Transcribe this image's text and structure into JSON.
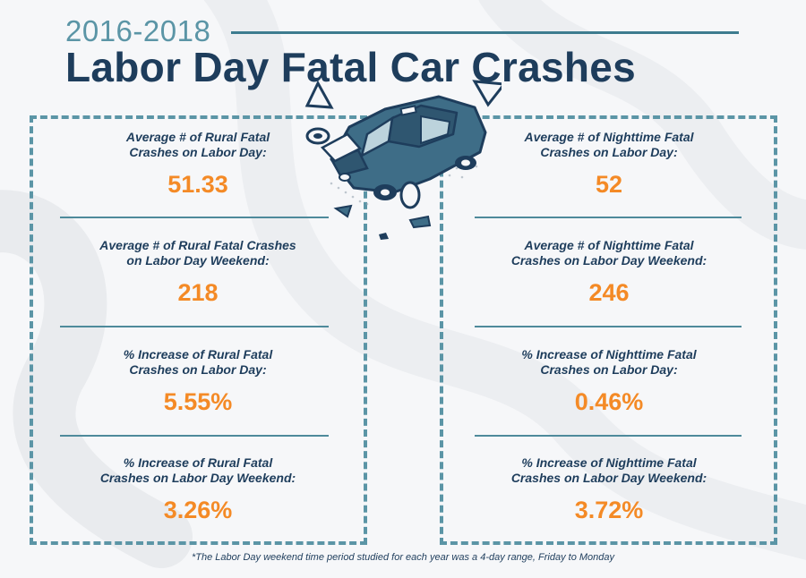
{
  "header": {
    "years": "2016-2018",
    "title": "Labor Day Fatal Car Crashes"
  },
  "colors": {
    "navy": "#1e3d5c",
    "teal": "#5b95a6",
    "orange": "#f48a26"
  },
  "left_panel": {
    "stats": [
      {
        "label": "Average # of Rural Fatal\nCrashes on Labor Day:",
        "value": "51.33"
      },
      {
        "label": "Average # of Rural Fatal Crashes\non Labor Day Weekend:",
        "value": "218"
      },
      {
        "label": "% Increase of Rural Fatal\nCrashes on Labor Day:",
        "value": "5.55%"
      },
      {
        "label": "% Increase of Rural Fatal\nCrashes on Labor Day Weekend:",
        "value": "3.26%"
      }
    ]
  },
  "right_panel": {
    "stats": [
      {
        "label": "Average # of Nighttime Fatal\nCrashes on Labor Day:",
        "value": "52"
      },
      {
        "label": "Average # of Nighttime Fatal\nCrashes on Labor Day Weekend:",
        "value": "246"
      },
      {
        "label": "% Increase of Nighttime Fatal\nCrashes on Labor Day:",
        "value": "0.46%"
      },
      {
        "label": "% Increase of Nighttime Fatal\nCrashes on Labor Day Weekend:",
        "value": "3.72%"
      }
    ]
  },
  "footnote": "*The Labor Day weekend time period studied for each year was a 4-day range, Friday to Monday",
  "illustration": {
    "icon": "crashed-car-icon"
  }
}
